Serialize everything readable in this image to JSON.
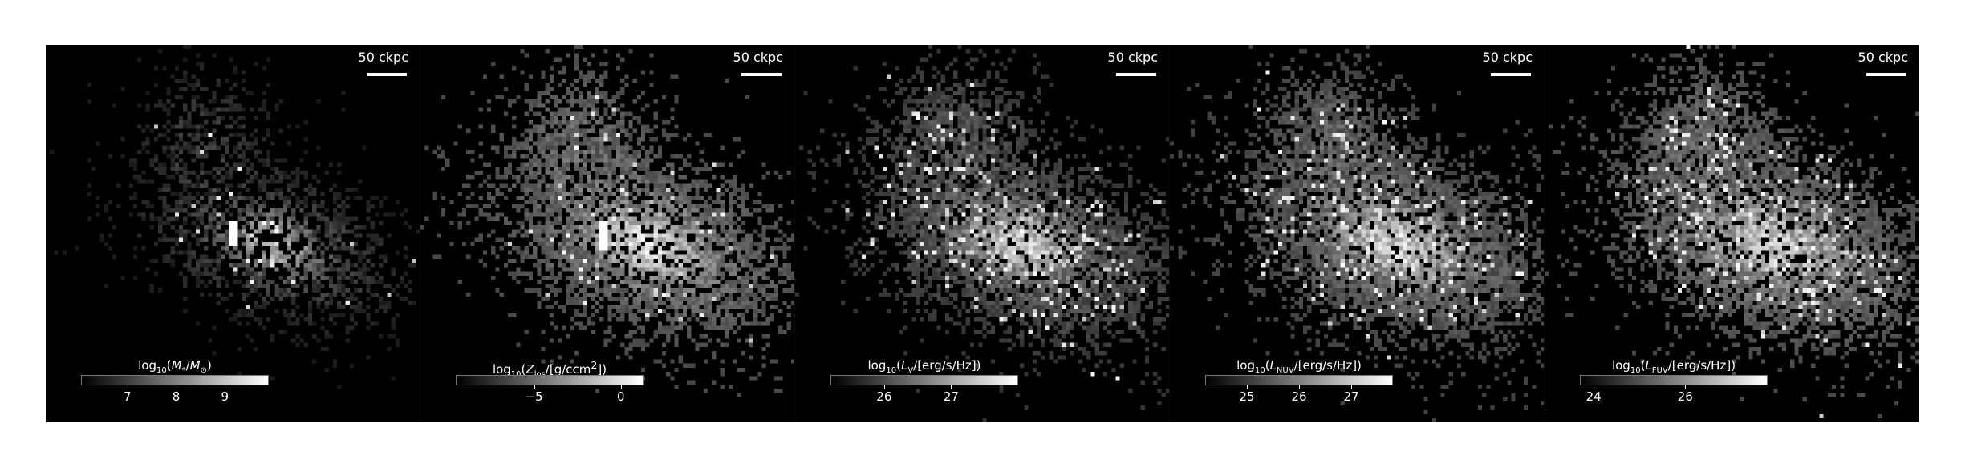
{
  "figure": {
    "panels": [
      {
        "id": "mstar",
        "scale_label": "50 ckpc",
        "colorbar": {
          "label_html": "log<sub>10</sub>(<i>M</i><sub>*</sub>/<i>M</i><sub>⊙</sub>)",
          "label_text": "log10(M*/M⊙)",
          "vmin": 6.05,
          "vmax": 9.9,
          "ticks": [
            7,
            8,
            9
          ]
        }
      },
      {
        "id": "zlos",
        "scale_label": "50 ckpc",
        "colorbar": {
          "label_html": "log<sub>10</sub>(<i>Z</i><sub>los</sub>/[g/ccm<sup>2</sup>])",
          "label_text": "log10(Zlos/[g/ccm2])",
          "vmin": -9.5,
          "vmax": 1.3,
          "ticks": [
            -5,
            0
          ]
        }
      },
      {
        "id": "lv",
        "scale_label": "50 ckpc",
        "colorbar": {
          "label_html": "log<sub>10</sub>(<i>L</i><sub>V</sub>/[erg/s/Hz])",
          "label_text": "log10(LV/[erg/s/Hz])",
          "vmin": 25.2,
          "vmax": 28.0,
          "ticks": [
            26,
            27
          ]
        }
      },
      {
        "id": "lnuv",
        "scale_label": "50 ckpc",
        "colorbar": {
          "label_html": "log<sub>10</sub>(<i>L</i><sub>NUV</sub>/[erg/s/Hz])",
          "label_text": "log10(LNUV/[erg/s/Hz])",
          "vmin": 24.2,
          "vmax": 27.8,
          "ticks": [
            25,
            26,
            27
          ]
        }
      },
      {
        "id": "lfuv",
        "scale_label": "50 ckpc",
        "colorbar": {
          "label_html": "log<sub>10</sub>(<i>L</i><sub>FUV</sub>/[erg/s/Hz])",
          "label_text": "log10(LFUV/[erg/s/Hz])",
          "vmin": 23.7,
          "vmax": 27.8,
          "ticks": [
            24,
            26
          ]
        }
      }
    ],
    "colors": {
      "background": "#000000",
      "colormap": "greys"
    }
  }
}
